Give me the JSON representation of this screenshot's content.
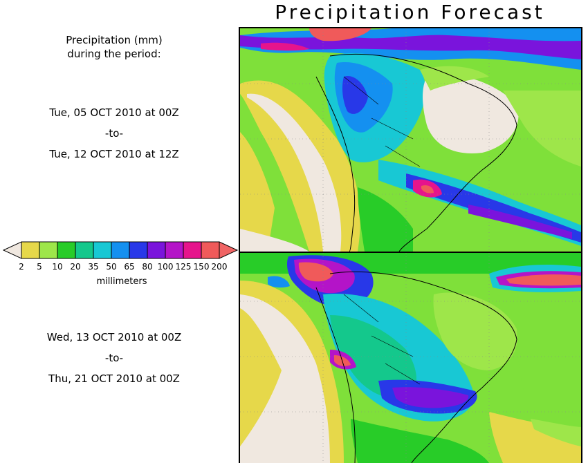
{
  "title": "Precipitation Forecast",
  "caption": {
    "line1": "Precipitation (mm)",
    "line2": "during the period:"
  },
  "period1": {
    "start": "Tue, 05 OCT 2010 at 00Z",
    "sep": "-to-",
    "end": "Tue, 12 OCT 2010 at 12Z"
  },
  "period2": {
    "start": "Wed, 13 OCT 2010 at 00Z",
    "sep": "-to-",
    "end": "Thu, 21 OCT 2010 at 00Z"
  },
  "legend": {
    "unit_label": "millimeters",
    "ticks": [
      "2",
      "5",
      "10",
      "20",
      "35",
      "50",
      "65",
      "80",
      "100",
      "125",
      "150",
      "200"
    ],
    "colors": [
      "#f0e8e0",
      "#e6d84a",
      "#9ee64a",
      "#28cc28",
      "#14c88c",
      "#18c8d4",
      "#1490f0",
      "#2838e8",
      "#7a14dc",
      "#b414c8",
      "#e6148c",
      "#f05a5a",
      "#f06464"
    ]
  },
  "maps": {
    "region": "South America",
    "colors": {
      "none": "#f0e8e0",
      "light": "#e6d84a",
      "low": "#9ee64a",
      "mid": "#28cc28",
      "teal": "#14c88c",
      "cyan": "#18c8d4",
      "blue": "#1490f0",
      "indigo": "#2838e8",
      "purple": "#7a14dc",
      "magenta": "#b414c8",
      "pink": "#e6148c",
      "red": "#f05a5a"
    }
  }
}
